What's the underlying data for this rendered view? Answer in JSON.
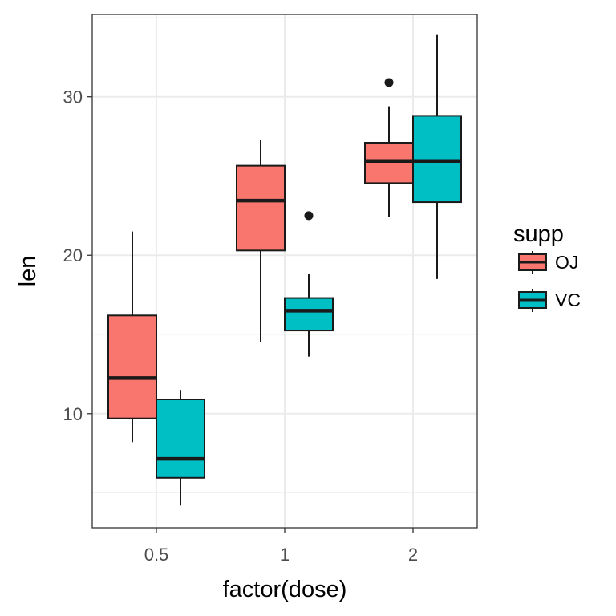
{
  "chart_data": {
    "type": "boxplot",
    "title": "",
    "xlabel": "factor(dose)",
    "ylabel": "len",
    "categories": [
      "0.5",
      "1",
      "2"
    ],
    "ylim": [
      2.8,
      35.2
    ],
    "y_major_ticks": [
      10,
      20,
      30
    ],
    "y_minor_ticks": [
      5,
      15,
      25,
      35
    ],
    "grid": true,
    "legend": {
      "title": "supp",
      "position": "right",
      "entries": [
        "OJ",
        "VC"
      ]
    },
    "series": [
      {
        "name": "OJ",
        "color": "#F8766D",
        "boxes": [
          {
            "category": "0.5",
            "whisker_low": 8.2,
            "q1": 9.7,
            "median": 12.25,
            "q3": 16.2,
            "whisker_high": 21.5,
            "outliers": []
          },
          {
            "category": "1",
            "whisker_low": 14.5,
            "q1": 20.3,
            "median": 23.45,
            "q3": 25.65,
            "whisker_high": 27.3,
            "outliers": []
          },
          {
            "category": "2",
            "whisker_low": 22.4,
            "q1": 24.55,
            "median": 25.95,
            "q3": 27.1,
            "whisker_high": 29.4,
            "outliers": [
              30.9
            ]
          }
        ]
      },
      {
        "name": "VC",
        "color": "#00BFC4",
        "boxes": [
          {
            "category": "0.5",
            "whisker_low": 4.2,
            "q1": 5.95,
            "median": 7.15,
            "q3": 10.9,
            "whisker_high": 11.5,
            "outliers": []
          },
          {
            "category": "1",
            "whisker_low": 13.6,
            "q1": 15.25,
            "median": 16.5,
            "q3": 17.3,
            "whisker_high": 18.8,
            "outliers": [
              22.5
            ]
          },
          {
            "category": "2",
            "whisker_low": 18.5,
            "q1": 23.35,
            "median": 25.95,
            "q3": 28.8,
            "whisker_high": 33.9,
            "outliers": []
          }
        ]
      }
    ]
  }
}
